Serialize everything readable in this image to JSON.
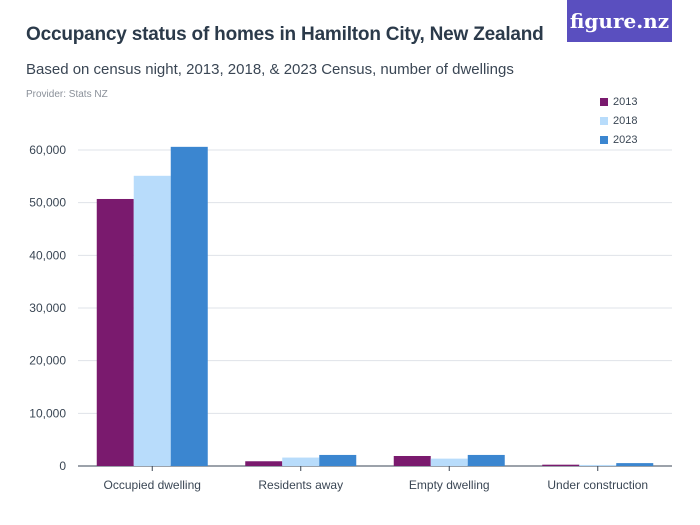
{
  "header": {
    "title": "Occupancy status of homes in Hamilton City, New Zealand",
    "subtitle": "Based on census night, 2013, 2018, & 2023 Census, number of dwellings",
    "provider": "Provider: Stats NZ",
    "logo_text": "figure.nz"
  },
  "colors": {
    "2013": "#7a1a6e",
    "2018": "#b8dcfb",
    "2023": "#3b86d0",
    "logo_bg": "#5a4fbf"
  },
  "chart_data": {
    "type": "bar",
    "title": "Occupancy status of homes in Hamilton City, New Zealand",
    "subtitle": "Based on census night, 2013, 2018, & 2023 Census, number of dwellings",
    "categories": [
      "Occupied dwelling",
      "Residents away",
      "Empty dwelling",
      "Under construction"
    ],
    "series": [
      {
        "name": "2013",
        "values": [
          50700,
          900,
          1900,
          250
        ]
      },
      {
        "name": "2018",
        "values": [
          55100,
          1600,
          1400,
          200
        ]
      },
      {
        "name": "2023",
        "values": [
          60600,
          2100,
          2100,
          550
        ]
      }
    ],
    "ylim": [
      0,
      60000
    ],
    "yticks": [
      "0",
      "10,000",
      "20,000",
      "30,000",
      "40,000",
      "50,000",
      "60,000"
    ],
    "grid": true,
    "legend": "top-right"
  }
}
